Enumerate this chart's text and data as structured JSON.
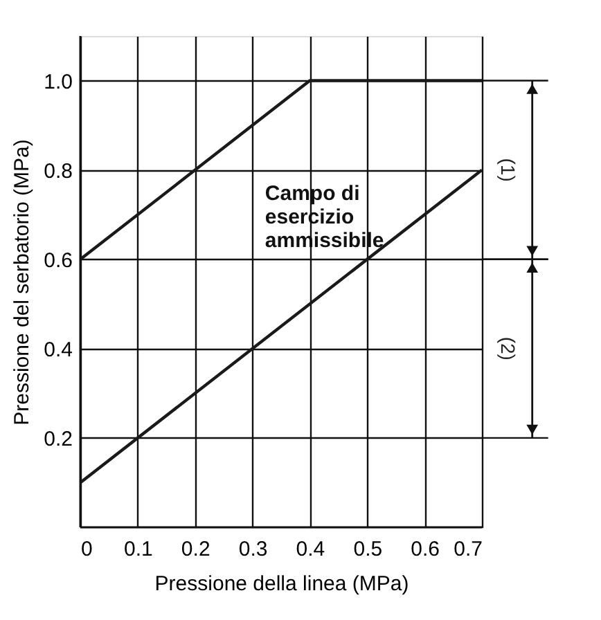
{
  "chart_data": {
    "type": "line",
    "xlabel": "Pressione della linea (MPa)",
    "ylabel": "Pressione  del serbatorio (MPa)",
    "xlim": [
      0,
      0.7
    ],
    "xticks": [
      0,
      0.1,
      0.2,
      0.3,
      0.4,
      0.5,
      0.6,
      0.7
    ],
    "ylim": [
      0,
      1.1
    ],
    "yticks": [
      0.2,
      0.4,
      0.6,
      0.8,
      {
        "value": 1,
        "label": "1.0"
      }
    ],
    "grid": true,
    "legend": false,
    "marker": "none",
    "line_style": "solid",
    "series": [
      {
        "color": "#1a1a1a",
        "x": [
          0,
          0.4,
          0.7
        ],
        "values": [
          0.6,
          1.0,
          1.0
        ]
      },
      {
        "color": "#1a1a1a",
        "x": [
          0,
          0.7
        ],
        "values": [
          0.1,
          0.8
        ]
      }
    ],
    "annotations": [
      "Campo di\nesercizio\nammissibile",
      "(1)",
      "(2)"
    ]
  }
}
